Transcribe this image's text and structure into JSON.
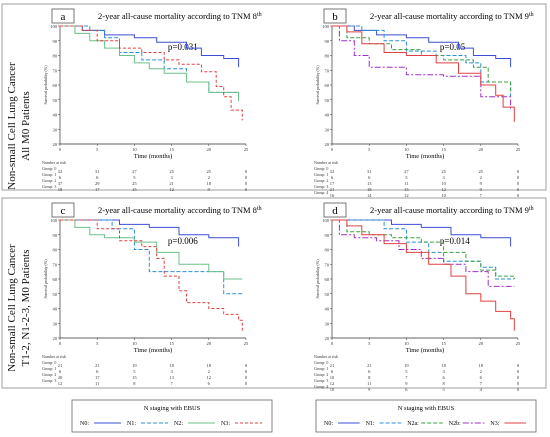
{
  "row_labels": [
    [
      "Non-small Cell Lung Cancer",
      "All M0 Patients"
    ],
    [
      "Non-small Cell Lung Cancer",
      "T1-2, N1-2-3, M0 Patients"
    ]
  ],
  "chart_data": [
    {
      "type": "line",
      "letter": "a",
      "title": "2-year all-cause mortality according to TNM 8",
      "title_sup": "th",
      "xlabel": "Time (months)",
      "ylabel": "Survival probability (%)",
      "pvalue": "p=0.031",
      "xticks": [
        0,
        5,
        10,
        15,
        20,
        25
      ],
      "yticks": [
        20,
        30,
        40,
        50,
        60,
        70,
        80,
        90,
        100
      ],
      "xlim": [
        0,
        25
      ],
      "ylim": [
        20,
        100
      ],
      "series": [
        {
          "color": "#3b4fd8",
          "dash": "",
          "points": [
            [
              0,
              100
            ],
            [
              3,
              97
            ],
            [
              6,
              94
            ],
            [
              10,
              92
            ],
            [
              13,
              89
            ],
            [
              17,
              85
            ],
            [
              19,
              80
            ],
            [
              22,
              78
            ],
            [
              24,
              72
            ]
          ]
        },
        {
          "color": "#2a8fd6",
          "dash": "4,2",
          "points": [
            [
              0,
              100
            ],
            [
              4,
              97
            ],
            [
              6,
              92
            ],
            [
              8,
              82
            ],
            [
              11,
              77
            ],
            [
              14,
              71
            ],
            [
              17,
              62
            ],
            [
              20,
              55
            ],
            [
              24,
              50
            ]
          ]
        },
        {
          "color": "#6cc08a",
          "dash": "",
          "points": [
            [
              0,
              100
            ],
            [
              2,
              95
            ],
            [
              4,
              90
            ],
            [
              6,
              85
            ],
            [
              8,
              80
            ],
            [
              10,
              75
            ],
            [
              12,
              71
            ],
            [
              14,
              68
            ],
            [
              17,
              62
            ],
            [
              20,
              55
            ],
            [
              24,
              49
            ]
          ]
        },
        {
          "color": "#e04040",
          "dash": "3,2",
          "points": [
            [
              0,
              100
            ],
            [
              3,
              97
            ],
            [
              5,
              90
            ],
            [
              8,
              85
            ],
            [
              11,
              82
            ],
            [
              14,
              77
            ],
            [
              16,
              74
            ],
            [
              19,
              69
            ],
            [
              21,
              59
            ],
            [
              22,
              52
            ],
            [
              23,
              43
            ],
            [
              24.5,
              36
            ]
          ]
        }
      ],
      "risk": {
        "header": "Number at risk",
        "groups": [
          "Group: 0",
          "Group: 1",
          "Group: 2",
          "Group: 3"
        ],
        "values": [
          [
            32,
            31,
            27,
            25,
            25,
            0
          ],
          [
            6,
            6,
            5,
            3,
            2,
            0
          ],
          [
            37,
            29,
            25,
            21,
            18,
            0
          ],
          [
            18,
            17,
            15,
            12,
            9,
            0
          ]
        ]
      }
    },
    {
      "type": "line",
      "letter": "b",
      "title": "2-year all-cause mortality according to TNM 9",
      "title_sup": "th",
      "xlabel": "Time (months)",
      "ylabel": "Survival probability (%)",
      "pvalue": "p=0.05",
      "xticks": [
        0,
        5,
        10,
        15,
        20,
        25
      ],
      "yticks": [
        20,
        30,
        40,
        50,
        60,
        70,
        80,
        90,
        100
      ],
      "xlim": [
        0,
        25
      ],
      "ylim": [
        20,
        100
      ],
      "series": [
        {
          "color": "#3b4fd8",
          "dash": "",
          "points": [
            [
              0,
              100
            ],
            [
              3,
              97
            ],
            [
              6,
              94
            ],
            [
              10,
              92
            ],
            [
              13,
              89
            ],
            [
              17,
              85
            ],
            [
              19,
              80
            ],
            [
              22,
              78
            ],
            [
              24,
              72
            ]
          ]
        },
        {
          "color": "#2a8fd6",
          "dash": "4,2",
          "points": [
            [
              0,
              100
            ],
            [
              4,
              97
            ],
            [
              7,
              90
            ],
            [
              10,
              83
            ],
            [
              14,
              80
            ],
            [
              18,
              75
            ],
            [
              20,
              62
            ],
            [
              24,
              52
            ]
          ]
        },
        {
          "color": "#3aa040",
          "dash": "4,2",
          "points": [
            [
              0,
              100
            ],
            [
              2,
              92
            ],
            [
              5,
              88
            ],
            [
              8,
              84
            ],
            [
              12,
              80
            ],
            [
              15,
              77
            ],
            [
              19,
              72
            ],
            [
              21,
              62
            ],
            [
              24,
              55
            ]
          ]
        },
        {
          "color": "#a030c8",
          "dash": "6,2,2,2",
          "points": [
            [
              0,
              100
            ],
            [
              1,
              90
            ],
            [
              3,
              80
            ],
            [
              5,
              72
            ],
            [
              10,
              67
            ],
            [
              15,
              66
            ],
            [
              20,
              52
            ],
            [
              24,
              44
            ]
          ]
        },
        {
          "color": "#e04040",
          "dash": "",
          "points": [
            [
              0,
              100
            ],
            [
              2,
              96
            ],
            [
              4,
              88
            ],
            [
              7,
              82
            ],
            [
              10,
              80
            ],
            [
              14,
              75
            ],
            [
              17,
              68
            ],
            [
              20,
              60
            ],
            [
              22,
              53
            ],
            [
              23,
              45
            ],
            [
              24.5,
              35
            ]
          ]
        }
      ],
      "risk": {
        "header": "Number at risk",
        "groups": [
          "Group: 0",
          "Group: 1",
          "Group: 2",
          "Group: 3",
          "Group: 4"
        ],
        "values": [
          [
            32,
            31,
            27,
            25,
            25,
            0
          ],
          [
            6,
            6,
            5,
            3,
            2,
            0
          ],
          [
            17,
            13,
            11,
            10,
            9,
            0
          ],
          [
            21,
            18,
            15,
            12,
            9,
            0
          ],
          [
            16,
            14,
            12,
            10,
            7,
            0
          ]
        ]
      }
    },
    {
      "type": "line",
      "letter": "c",
      "title": "2-year all-cause mortality according to TNM 8",
      "title_sup": "th",
      "xlabel": "Time (months)",
      "ylabel": "Survival probability (%)",
      "pvalue": "p=0.006",
      "xticks": [
        0,
        5,
        10,
        15,
        20,
        25
      ],
      "yticks": [
        20,
        30,
        40,
        50,
        60,
        70,
        80,
        90,
        100
      ],
      "xlim": [
        0,
        25
      ],
      "ylim": [
        20,
        100
      ],
      "series": [
        {
          "color": "#3b4fd8",
          "dash": "",
          "points": [
            [
              0,
              100
            ],
            [
              3,
              100
            ],
            [
              8,
              97
            ],
            [
              12,
              95
            ],
            [
              16,
              90
            ],
            [
              20,
              88
            ],
            [
              24,
              82
            ]
          ]
        },
        {
          "color": "#2a8fd6",
          "dash": "4,2",
          "points": [
            [
              0,
              100
            ],
            [
              5,
              100
            ],
            [
              7,
              94
            ],
            [
              10,
              80
            ],
            [
              12,
              65
            ],
            [
              20,
              65
            ],
            [
              22,
              50
            ],
            [
              24.5,
              50
            ]
          ]
        },
        {
          "color": "#6cc08a",
          "dash": "",
          "points": [
            [
              0,
              100
            ],
            [
              2,
              95
            ],
            [
              4,
              90
            ],
            [
              6,
              88
            ],
            [
              10,
              85
            ],
            [
              13,
              78
            ],
            [
              16,
              70
            ],
            [
              20,
              65
            ],
            [
              22,
              60
            ],
            [
              24.5,
              60
            ]
          ]
        },
        {
          "color": "#e04040",
          "dash": "3,2",
          "points": [
            [
              0,
              100
            ],
            [
              3,
              100
            ],
            [
              5,
              94
            ],
            [
              8,
              86
            ],
            [
              11,
              82
            ],
            [
              13,
              74
            ],
            [
              14,
              62
            ],
            [
              16,
              52
            ],
            [
              17,
              44
            ],
            [
              19,
              44
            ],
            [
              20,
              40
            ],
            [
              22,
              36
            ],
            [
              24,
              32
            ],
            [
              24.5,
              25
            ]
          ]
        }
      ],
      "risk": {
        "header": "Number at risk",
        "groups": [
          "Group: 0",
          "Group: 1",
          "Group: 2",
          "Group: 3"
        ],
        "values": [
          [
            21,
            21,
            19,
            18,
            18,
            0
          ],
          [
            6,
            6,
            5,
            3,
            2,
            0
          ],
          [
            20,
            17,
            15,
            13,
            12,
            0
          ],
          [
            12,
            11,
            8,
            7,
            6,
            0
          ]
        ]
      }
    },
    {
      "type": "line",
      "letter": "d",
      "title": "2-year all-cause mortality according to TNM 9",
      "title_sup": "th",
      "xlabel": "Time (months)",
      "ylabel": "Survival probability (%)",
      "pvalue": "p=0.014",
      "xticks": [
        0,
        5,
        10,
        15,
        20,
        25
      ],
      "yticks": [
        20,
        30,
        40,
        50,
        60,
        70,
        80,
        90,
        100
      ],
      "xlim": [
        0,
        25
      ],
      "ylim": [
        20,
        100
      ],
      "series": [
        {
          "color": "#3b4fd8",
          "dash": "",
          "points": [
            [
              0,
              100
            ],
            [
              3,
              100
            ],
            [
              8,
              97
            ],
            [
              12,
              95
            ],
            [
              16,
              90
            ],
            [
              20,
              88
            ],
            [
              24,
              82
            ]
          ]
        },
        {
          "color": "#2a8fd6",
          "dash": "4,2",
          "points": [
            [
              0,
              100
            ],
            [
              5,
              100
            ],
            [
              7,
              94
            ],
            [
              10,
              85
            ],
            [
              13,
              78
            ],
            [
              15,
              72
            ],
            [
              20,
              68
            ],
            [
              22,
              60
            ],
            [
              24.5,
              60
            ]
          ]
        },
        {
          "color": "#3aa040",
          "dash": "4,2",
          "points": [
            [
              0,
              100
            ],
            [
              2,
              92
            ],
            [
              5,
              90
            ],
            [
              8,
              88
            ],
            [
              12,
              85
            ],
            [
              15,
              78
            ],
            [
              18,
              72
            ],
            [
              20,
              66
            ],
            [
              22,
              62
            ],
            [
              24.5,
              60
            ]
          ]
        },
        {
          "color": "#a030c8",
          "dash": "6,2,2,2",
          "points": [
            [
              0,
              100
            ],
            [
              1,
              90
            ],
            [
              3,
              88
            ],
            [
              6,
              86
            ],
            [
              9,
              80
            ],
            [
              12,
              74
            ],
            [
              15,
              70
            ],
            [
              18,
              65
            ],
            [
              21,
              55
            ],
            [
              24.5,
              55
            ]
          ]
        },
        {
          "color": "#e04040",
          "dash": "",
          "points": [
            [
              0,
              100
            ],
            [
              2,
              96
            ],
            [
              4,
              90
            ],
            [
              7,
              84
            ],
            [
              10,
              78
            ],
            [
              13,
              70
            ],
            [
              16,
              62
            ],
            [
              18,
              50
            ],
            [
              20,
              45
            ],
            [
              22,
              38
            ],
            [
              24,
              33
            ],
            [
              24.5,
              25
            ]
          ]
        }
      ],
      "risk": {
        "header": "Number at risk",
        "groups": [
          "Group: 0",
          "Group: 1",
          "Group: 2",
          "Group: 3",
          "Group: 4"
        ],
        "values": [
          [
            21,
            21,
            19,
            18,
            18,
            0
          ],
          [
            6,
            6,
            5,
            3,
            2,
            0
          ],
          [
            10,
            8,
            7,
            6,
            6,
            0
          ],
          [
            12,
            11,
            9,
            8,
            7,
            0
          ],
          [
            10,
            9,
            6,
            5,
            4,
            0
          ]
        ]
      }
    }
  ],
  "legends": [
    {
      "title": "N staging with EBUS",
      "items": [
        {
          "label": "N0:",
          "color": "#3b4fd8",
          "dash": ""
        },
        {
          "label": "N1:",
          "color": "#2a8fd6",
          "dash": "4,2"
        },
        {
          "label": "N2:",
          "color": "#6cc08a",
          "dash": ""
        },
        {
          "label": "N3:",
          "color": "#e04040",
          "dash": "3,2"
        }
      ]
    },
    {
      "title": "N staging with EBUS",
      "items": [
        {
          "label": "N0:",
          "color": "#3b4fd8",
          "dash": ""
        },
        {
          "label": "N1:",
          "color": "#2a8fd6",
          "dash": "4,2"
        },
        {
          "label": "N2a:",
          "color": "#3aa040",
          "dash": "4,2"
        },
        {
          "label": "N2b:",
          "color": "#a030c8",
          "dash": "6,2,2,2"
        },
        {
          "label": "N3:",
          "color": "#e04040",
          "dash": ""
        }
      ]
    }
  ]
}
